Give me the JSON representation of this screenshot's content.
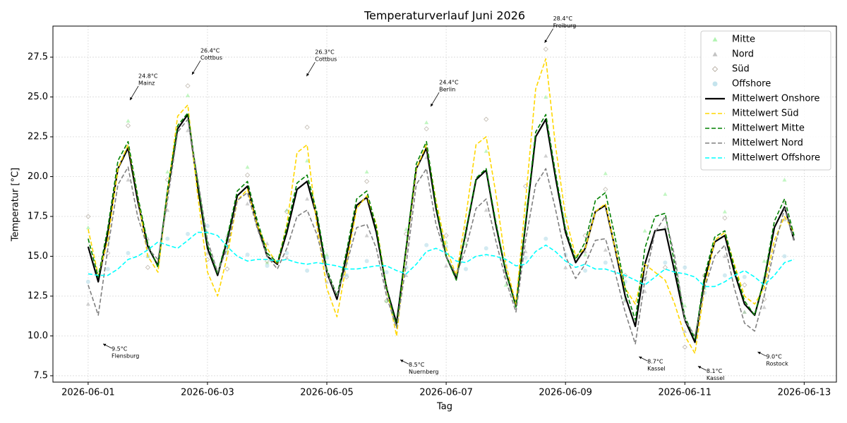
{
  "chart_data": {
    "type": "line",
    "title": "Temperaturverlauf Juni 2026",
    "x_label": "Tag",
    "y_label": "Temperatur [°C]",
    "xlim": [
      -0.59,
      12.54
    ],
    "ylim": [
      7.1,
      29.45
    ],
    "xticks": [
      {
        "value": 0,
        "label": "2026-06-01"
      },
      {
        "value": 2,
        "label": "2026-06-03"
      },
      {
        "value": 4,
        "label": "2026-06-05"
      },
      {
        "value": 6,
        "label": "2026-06-07"
      },
      {
        "value": 8,
        "label": "2026-06-09"
      },
      {
        "value": 10,
        "label": "2026-06-11"
      },
      {
        "value": 12,
        "label": "2026-06-13"
      }
    ],
    "yticks": [
      7.5,
      {
        "value": 10,
        "label": "10.0"
      },
      12.5,
      {
        "value": 15,
        "label": "15.0"
      },
      17.5,
      {
        "value": 20,
        "label": "20.0"
      },
      22.5,
      {
        "value": 25,
        "label": "25.0"
      },
      27.5
    ],
    "grid": true,
    "legend": "upper right",
    "x": [
      0,
      0.17,
      0.33,
      0.5,
      0.67,
      0.83,
      1,
      1.17,
      1.33,
      1.5,
      1.67,
      1.83,
      2,
      2.17,
      2.33,
      2.5,
      2.67,
      2.83,
      3,
      3.17,
      3.33,
      3.5,
      3.67,
      3.83,
      4,
      4.17,
      4.33,
      4.5,
      4.67,
      4.83,
      5,
      5.17,
      5.33,
      5.5,
      5.67,
      5.83,
      6,
      6.17,
      6.33,
      6.5,
      6.67,
      6.83,
      7,
      7.17,
      7.33,
      7.5,
      7.67,
      7.83,
      8,
      8.17,
      8.33,
      8.5,
      8.67,
      8.83,
      9,
      9.17,
      9.33,
      9.5,
      9.67,
      9.83,
      10,
      10.17,
      10.33,
      10.5,
      10.67,
      10.83,
      11,
      11.17,
      11.33,
      11.5,
      11.67,
      11.83
    ],
    "scatter_x": [
      0,
      0.33,
      0.67,
      1,
      1.33,
      1.67,
      2,
      2.33,
      2.67,
      3,
      3.33,
      3.67,
      4,
      4.33,
      4.67,
      5,
      5.33,
      5.67,
      6,
      6.33,
      6.67,
      7,
      7.33,
      7.67,
      8,
      8.33,
      8.67,
      9,
      9.33,
      9.67,
      10,
      10.33,
      10.67,
      11,
      11.33,
      11.67
    ],
    "series": [
      {
        "name": "Mitte",
        "type": "scatter",
        "marker": "triangle",
        "color": "#90ee90",
        "values": [
          16.8,
          16.0,
          23.5,
          15.0,
          20.3,
          25.1,
          16.5,
          15.4,
          20.6,
          14.6,
          17.9,
          21.0,
          15.1,
          14.6,
          20.3,
          12.2,
          16.7,
          23.4,
          15.9,
          15.8,
          21.6,
          13.2,
          18.3,
          25.0,
          17.5,
          15.1,
          20.2,
          12.3,
          16.6,
          18.9,
          11.9,
          13.0,
          17.8,
          11.5,
          14.7,
          19.8
        ]
      },
      {
        "name": "Nord",
        "type": "scatter",
        "marker": "triangle",
        "color": "#a9a9a9",
        "values": [
          12.0,
          16.2,
          19.8,
          16.1,
          17.9,
          22.9,
          15.2,
          16.3,
          18.3,
          15.8,
          14.9,
          18.6,
          13.4,
          15.2,
          16.3,
          13.1,
          13.8,
          21.2,
          14.4,
          16.2,
          17.9,
          14.2,
          15.3,
          21.3,
          14.3,
          15.3,
          15.4,
          12.2,
          12.8,
          16.8,
          10.3,
          13.8,
          15.0,
          11.5,
          11.8,
          17.3
        ]
      },
      {
        "name": "Süd",
        "type": "scatter",
        "marker": "diamond",
        "color": "#8b7d6b",
        "values": [
          17.5,
          15.2,
          23.2,
          14.3,
          19.8,
          25.7,
          14.8,
          14.2,
          20.1,
          14.7,
          17.8,
          23.1,
          13.8,
          13.7,
          19.7,
          12.2,
          16.4,
          23.0,
          16.3,
          16.7,
          23.6,
          13.7,
          19.4,
          28.0,
          16.7,
          16.3,
          19.2,
          13.8,
          13.7,
          14.3,
          9.3,
          13.8,
          17.4,
          13.2,
          12.3,
          18.4
        ]
      },
      {
        "name": "Offshore",
        "type": "scatter",
        "marker": "circle",
        "color": "#add8e6",
        "values": [
          13.4,
          14.2,
          15.2,
          15.0,
          16.1,
          16.4,
          16.9,
          15.2,
          15.1,
          14.4,
          15.2,
          14.1,
          14.9,
          13.8,
          14.7,
          14.0,
          14.3,
          15.7,
          15.6,
          14.2,
          15.5,
          14.4,
          14.9,
          16.1,
          15.1,
          14.1,
          14.6,
          13.4,
          13.6,
          14.6,
          14.3,
          12.7,
          13.8,
          13.7,
          13.6,
          15.0
        ]
      },
      {
        "name": "Mittelwert Onshore",
        "type": "line",
        "style": "solid",
        "color": "#000000",
        "values": [
          15.6,
          13.4,
          16.5,
          20.5,
          21.8,
          18.5,
          15.6,
          14.4,
          19.0,
          23.0,
          23.9,
          19.5,
          15.5,
          13.8,
          16.0,
          18.8,
          19.4,
          17.0,
          15.0,
          14.5,
          16.5,
          19.2,
          19.7,
          17.5,
          14.0,
          12.3,
          15.0,
          18.2,
          18.7,
          16.5,
          13.0,
          10.8,
          15.5,
          20.5,
          21.8,
          18.0,
          15.0,
          13.6,
          16.5,
          19.8,
          20.4,
          17.0,
          14.0,
          11.9,
          17.0,
          22.5,
          23.6,
          20.0,
          16.5,
          14.6,
          15.5,
          17.8,
          18.2,
          15.5,
          12.5,
          10.6,
          14.5,
          16.6,
          16.7,
          14.0,
          11.0,
          9.6,
          13.5,
          15.9,
          16.3,
          14.0,
          12.0,
          11.3,
          13.5,
          16.8,
          18.1,
          16.0
        ]
      },
      {
        "name": "Mittelwert Süd",
        "type": "line",
        "style": "dashed",
        "color": "#ffd700",
        "values": [
          16.7,
          13.8,
          16.0,
          20.5,
          22.0,
          18.8,
          15.0,
          14.0,
          19.0,
          23.8,
          24.5,
          19.0,
          14.0,
          12.5,
          15.0,
          18.5,
          19.2,
          17.0,
          15.5,
          14.5,
          17.0,
          21.5,
          22.0,
          17.0,
          13.0,
          11.2,
          14.5,
          18.0,
          18.8,
          17.0,
          13.0,
          10.0,
          15.5,
          20.5,
          22.0,
          18.5,
          15.5,
          13.8,
          17.5,
          22.0,
          22.5,
          19.0,
          14.5,
          12.0,
          18.5,
          25.5,
          27.4,
          22.0,
          17.5,
          15.0,
          15.5,
          17.8,
          18.3,
          15.5,
          13.0,
          12.0,
          14.5,
          14.0,
          13.5,
          12.0,
          10.0,
          8.9,
          13.0,
          16.0,
          16.5,
          14.5,
          12.5,
          12.0,
          13.0,
          16.0,
          17.5,
          16.5
        ]
      },
      {
        "name": "Mittelwert Mitte",
        "type": "line",
        "style": "dashed",
        "color": "#008000",
        "values": [
          16.1,
          13.7,
          16.8,
          21.0,
          22.2,
          18.8,
          15.8,
          14.3,
          19.2,
          23.2,
          24.0,
          19.8,
          15.7,
          13.9,
          16.2,
          19.1,
          19.7,
          17.3,
          15.2,
          14.6,
          16.8,
          19.6,
          20.1,
          17.8,
          14.2,
          12.5,
          15.3,
          18.6,
          19.1,
          16.8,
          13.0,
          10.6,
          15.6,
          20.8,
          22.2,
          18.2,
          15.0,
          13.5,
          16.6,
          19.9,
          20.5,
          17.2,
          14.0,
          11.8,
          17.2,
          22.8,
          23.9,
          20.3,
          16.7,
          14.8,
          15.9,
          18.5,
          19.0,
          16.2,
          13.0,
          11.0,
          15.5,
          17.5,
          17.7,
          14.5,
          11.2,
          9.8,
          13.8,
          16.2,
          16.6,
          14.3,
          12.2,
          11.3,
          13.6,
          17.2,
          18.6,
          16.3
        ]
      },
      {
        "name": "Mittelwert Nord",
        "type": "line",
        "style": "dashed",
        "color": "#808080",
        "values": [
          13.2,
          11.3,
          15.5,
          19.5,
          20.6,
          17.5,
          15.5,
          14.8,
          18.5,
          22.8,
          23.6,
          20.0,
          16.0,
          14.0,
          15.5,
          18.5,
          19.0,
          16.8,
          15.0,
          14.2,
          15.5,
          17.5,
          17.9,
          16.4,
          14.0,
          12.5,
          14.5,
          16.8,
          17.0,
          15.5,
          12.5,
          10.5,
          14.5,
          19.5,
          20.5,
          17.0,
          15.0,
          13.8,
          15.5,
          18.0,
          18.6,
          16.0,
          13.5,
          11.5,
          16.0,
          19.5,
          20.5,
          18.0,
          15.0,
          13.6,
          14.5,
          16.0,
          16.1,
          14.0,
          11.5,
          9.5,
          13.5,
          16.5,
          17.5,
          15.0,
          11.0,
          10.0,
          13.0,
          15.0,
          15.7,
          13.0,
          10.8,
          10.3,
          12.5,
          15.5,
          18.0,
          16.0
        ]
      },
      {
        "name": "Mittelwert Offshore",
        "type": "line",
        "style": "dashed",
        "color": "#00ffff",
        "values": [
          13.9,
          13.8,
          13.8,
          14.2,
          14.8,
          15.0,
          15.4,
          15.9,
          15.7,
          15.5,
          16.0,
          16.5,
          16.5,
          16.3,
          15.6,
          15.0,
          14.7,
          14.8,
          14.8,
          14.7,
          14.8,
          14.6,
          14.5,
          14.6,
          14.5,
          14.4,
          14.2,
          14.2,
          14.3,
          14.4,
          14.4,
          14.1,
          13.9,
          14.5,
          15.3,
          15.5,
          15.2,
          14.7,
          14.6,
          15.0,
          15.1,
          15.0,
          14.8,
          14.4,
          14.5,
          15.3,
          15.7,
          15.3,
          14.7,
          14.3,
          14.5,
          14.2,
          14.2,
          14.0,
          13.8,
          13.5,
          13.2,
          13.7,
          14.2,
          14.0,
          13.9,
          13.7,
          13.1,
          13.1,
          13.4,
          13.8,
          14.1,
          13.7,
          13.2,
          13.8,
          14.6,
          14.8
        ]
      }
    ],
    "annotations": [
      {
        "x": 0.7,
        "value": 24.8,
        "label": "24.8°C",
        "city": "Mainz"
      },
      {
        "x": 1.74,
        "value": 26.4,
        "label": "26.4°C",
        "city": "Cottbus"
      },
      {
        "x": 3.66,
        "value": 26.3,
        "label": "26.3°C",
        "city": "Cottbus"
      },
      {
        "x": 5.74,
        "value": 24.4,
        "label": "24.4°C",
        "city": "Berlin"
      },
      {
        "x": 7.65,
        "value": 28.4,
        "label": "28.4°C",
        "city": "Freiburg"
      },
      {
        "x": 0.25,
        "value": 9.5,
        "label": "9.5°C",
        "city": "Flensburg"
      },
      {
        "x": 5.23,
        "value": 8.5,
        "label": "8.5°C",
        "city": "Nuernberg"
      },
      {
        "x": 9.23,
        "value": 8.7,
        "label": "8.7°C",
        "city": "Kassel"
      },
      {
        "x": 10.22,
        "value": 8.1,
        "label": "8.1°C",
        "city": "Kassel"
      },
      {
        "x": 11.22,
        "value": 9.0,
        "label": "9.0°C",
        "city": "Rostock"
      }
    ]
  }
}
